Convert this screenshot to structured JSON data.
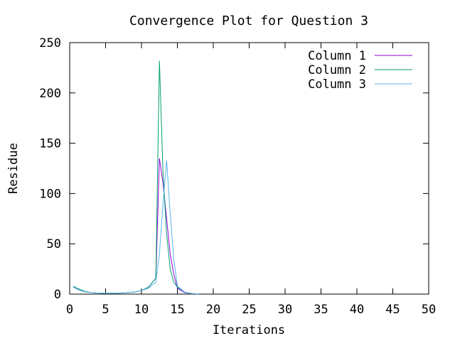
{
  "chart_data": {
    "type": "line",
    "title": "Convergence Plot for Question 3",
    "xlabel": "Iterations",
    "ylabel": "Residue",
    "xlim": [
      0,
      50
    ],
    "ylim": [
      0,
      250
    ],
    "xticks": [
      "0",
      "5",
      "10",
      "15",
      "20",
      "25",
      "30",
      "35",
      "40",
      "45",
      "50"
    ],
    "yticks": [
      "0",
      "50",
      "100",
      "150",
      "200",
      "250"
    ],
    "grid": false,
    "legend_position": "top-right",
    "series": [
      {
        "name": "Column 1",
        "color": "#9400d3",
        "x": [
          0.5,
          1,
          2,
          3,
          4,
          5,
          6,
          7,
          8,
          9,
          10,
          11,
          12,
          12.5,
          13,
          13.5,
          14,
          14.5,
          15,
          16,
          17,
          18
        ],
        "y": [
          7,
          5,
          2.5,
          1.5,
          1,
          1,
          1,
          1,
          1.5,
          2,
          3.5,
          7,
          16,
          135,
          110,
          75,
          40,
          20,
          6,
          1.5,
          0.5,
          0.2
        ]
      },
      {
        "name": "Column 2",
        "color": "#009e73",
        "x": [
          0.5,
          1,
          2,
          3,
          4,
          5,
          6,
          7,
          8,
          9,
          10,
          11,
          12,
          12.5,
          13,
          13.5,
          14,
          14.5,
          15,
          16,
          17,
          18
        ],
        "y": [
          8,
          6,
          3,
          1.5,
          1,
          1,
          1,
          1,
          1.5,
          2,
          3.5,
          7,
          16,
          232,
          120,
          60,
          25,
          12,
          7,
          2,
          0.5,
          0.2
        ]
      },
      {
        "name": "Column 3",
        "color": "#56b4e9",
        "x": [
          0.5,
          1,
          2,
          3,
          4,
          5,
          6,
          7,
          8,
          9,
          10,
          11,
          12,
          12.5,
          13,
          13.5,
          14,
          14.5,
          15,
          16,
          17,
          18
        ],
        "y": [
          7,
          5,
          2.5,
          1.5,
          1,
          1,
          1,
          1,
          1.5,
          2,
          3.5,
          6,
          12,
          40,
          90,
          133,
          80,
          35,
          8,
          2,
          0.5,
          0.2
        ]
      }
    ]
  }
}
